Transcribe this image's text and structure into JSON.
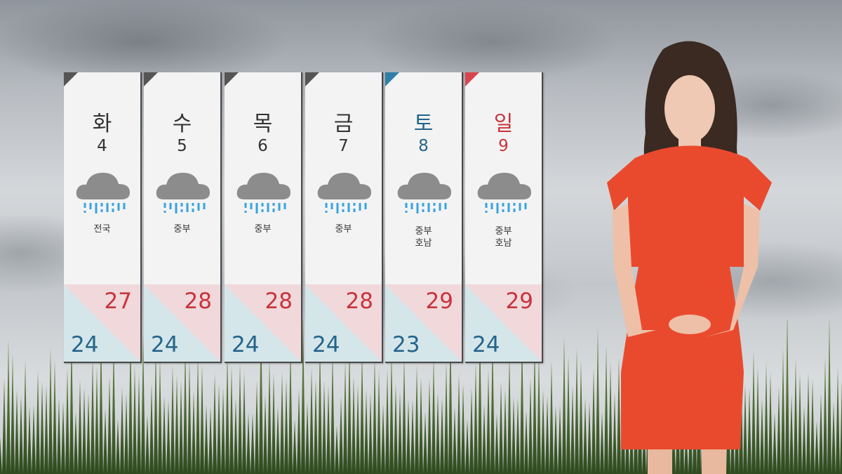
{
  "colors": {
    "weekday": "#333333",
    "saturday": "#24658a",
    "sunday": "#c8343c",
    "high": "#c8343c",
    "low": "#24658a",
    "saturday_corner": "#2f7fa8",
    "sunday_corner": "#d9454e",
    "weekday_corner": "#555555"
  },
  "forecast": [
    {
      "day": "화",
      "date": "4",
      "icon": "rain-cloud-icon",
      "region": "전국",
      "region2": "",
      "high": "27",
      "low": "24",
      "type": "weekday"
    },
    {
      "day": "수",
      "date": "5",
      "icon": "rain-cloud-icon",
      "region": "중부",
      "region2": "",
      "high": "28",
      "low": "24",
      "type": "weekday"
    },
    {
      "day": "목",
      "date": "6",
      "icon": "rain-cloud-icon",
      "region": "중부",
      "region2": "",
      "high": "28",
      "low": "24",
      "type": "weekday"
    },
    {
      "day": "금",
      "date": "7",
      "icon": "rain-cloud-icon",
      "region": "중부",
      "region2": "",
      "high": "28",
      "low": "24",
      "type": "weekday"
    },
    {
      "day": "토",
      "date": "8",
      "icon": "rain-cloud-icon",
      "region": "중부",
      "region2": "호남",
      "high": "29",
      "low": "23",
      "type": "saturday"
    },
    {
      "day": "일",
      "date": "9",
      "icon": "rain-cloud-icon",
      "region": "중부",
      "region2": "호남",
      "high": "29",
      "low": "24",
      "type": "sunday"
    }
  ]
}
